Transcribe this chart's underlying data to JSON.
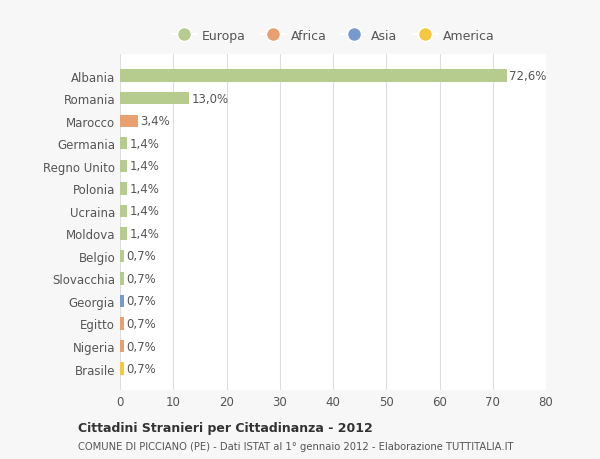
{
  "categories": [
    "Brasile",
    "Nigeria",
    "Egitto",
    "Georgia",
    "Slovacchia",
    "Belgio",
    "Moldova",
    "Ucraina",
    "Polonia",
    "Regno Unito",
    "Germania",
    "Marocco",
    "Romania",
    "Albania"
  ],
  "values": [
    0.7,
    0.7,
    0.7,
    0.7,
    0.7,
    0.7,
    1.4,
    1.4,
    1.4,
    1.4,
    1.4,
    3.4,
    13.0,
    72.6
  ],
  "labels": [
    "0,7%",
    "0,7%",
    "0,7%",
    "0,7%",
    "0,7%",
    "0,7%",
    "1,4%",
    "1,4%",
    "1,4%",
    "1,4%",
    "1,4%",
    "3,4%",
    "13,0%",
    "72,6%"
  ],
  "colors": [
    "#f5c842",
    "#e8a070",
    "#e8a070",
    "#7799cc",
    "#b5cc8e",
    "#b5cc8e",
    "#b5cc8e",
    "#b5cc8e",
    "#b5cc8e",
    "#b5cc8e",
    "#b5cc8e",
    "#e8a070",
    "#b5cc8e",
    "#b5cc8e"
  ],
  "legend_labels": [
    "Europa",
    "Africa",
    "Asia",
    "America"
  ],
  "legend_colors": [
    "#b5cc8e",
    "#e8a070",
    "#7799cc",
    "#f5c842"
  ],
  "title1": "Cittadini Stranieri per Cittadinanza - 2012",
  "title2": "COMUNE DI PICCIANO (PE) - Dati ISTAT al 1° gennaio 2012 - Elaborazione TUTTITALIA.IT",
  "xlim": [
    0,
    80
  ],
  "xticks": [
    0,
    10,
    20,
    30,
    40,
    50,
    60,
    70,
    80
  ],
  "bg_color": "#f7f7f7",
  "plot_bg_color": "#ffffff",
  "grid_color": "#dddddd",
  "text_color": "#555555",
  "label_fontsize": 8.5,
  "tick_fontsize": 8.5,
  "bar_height": 0.55
}
